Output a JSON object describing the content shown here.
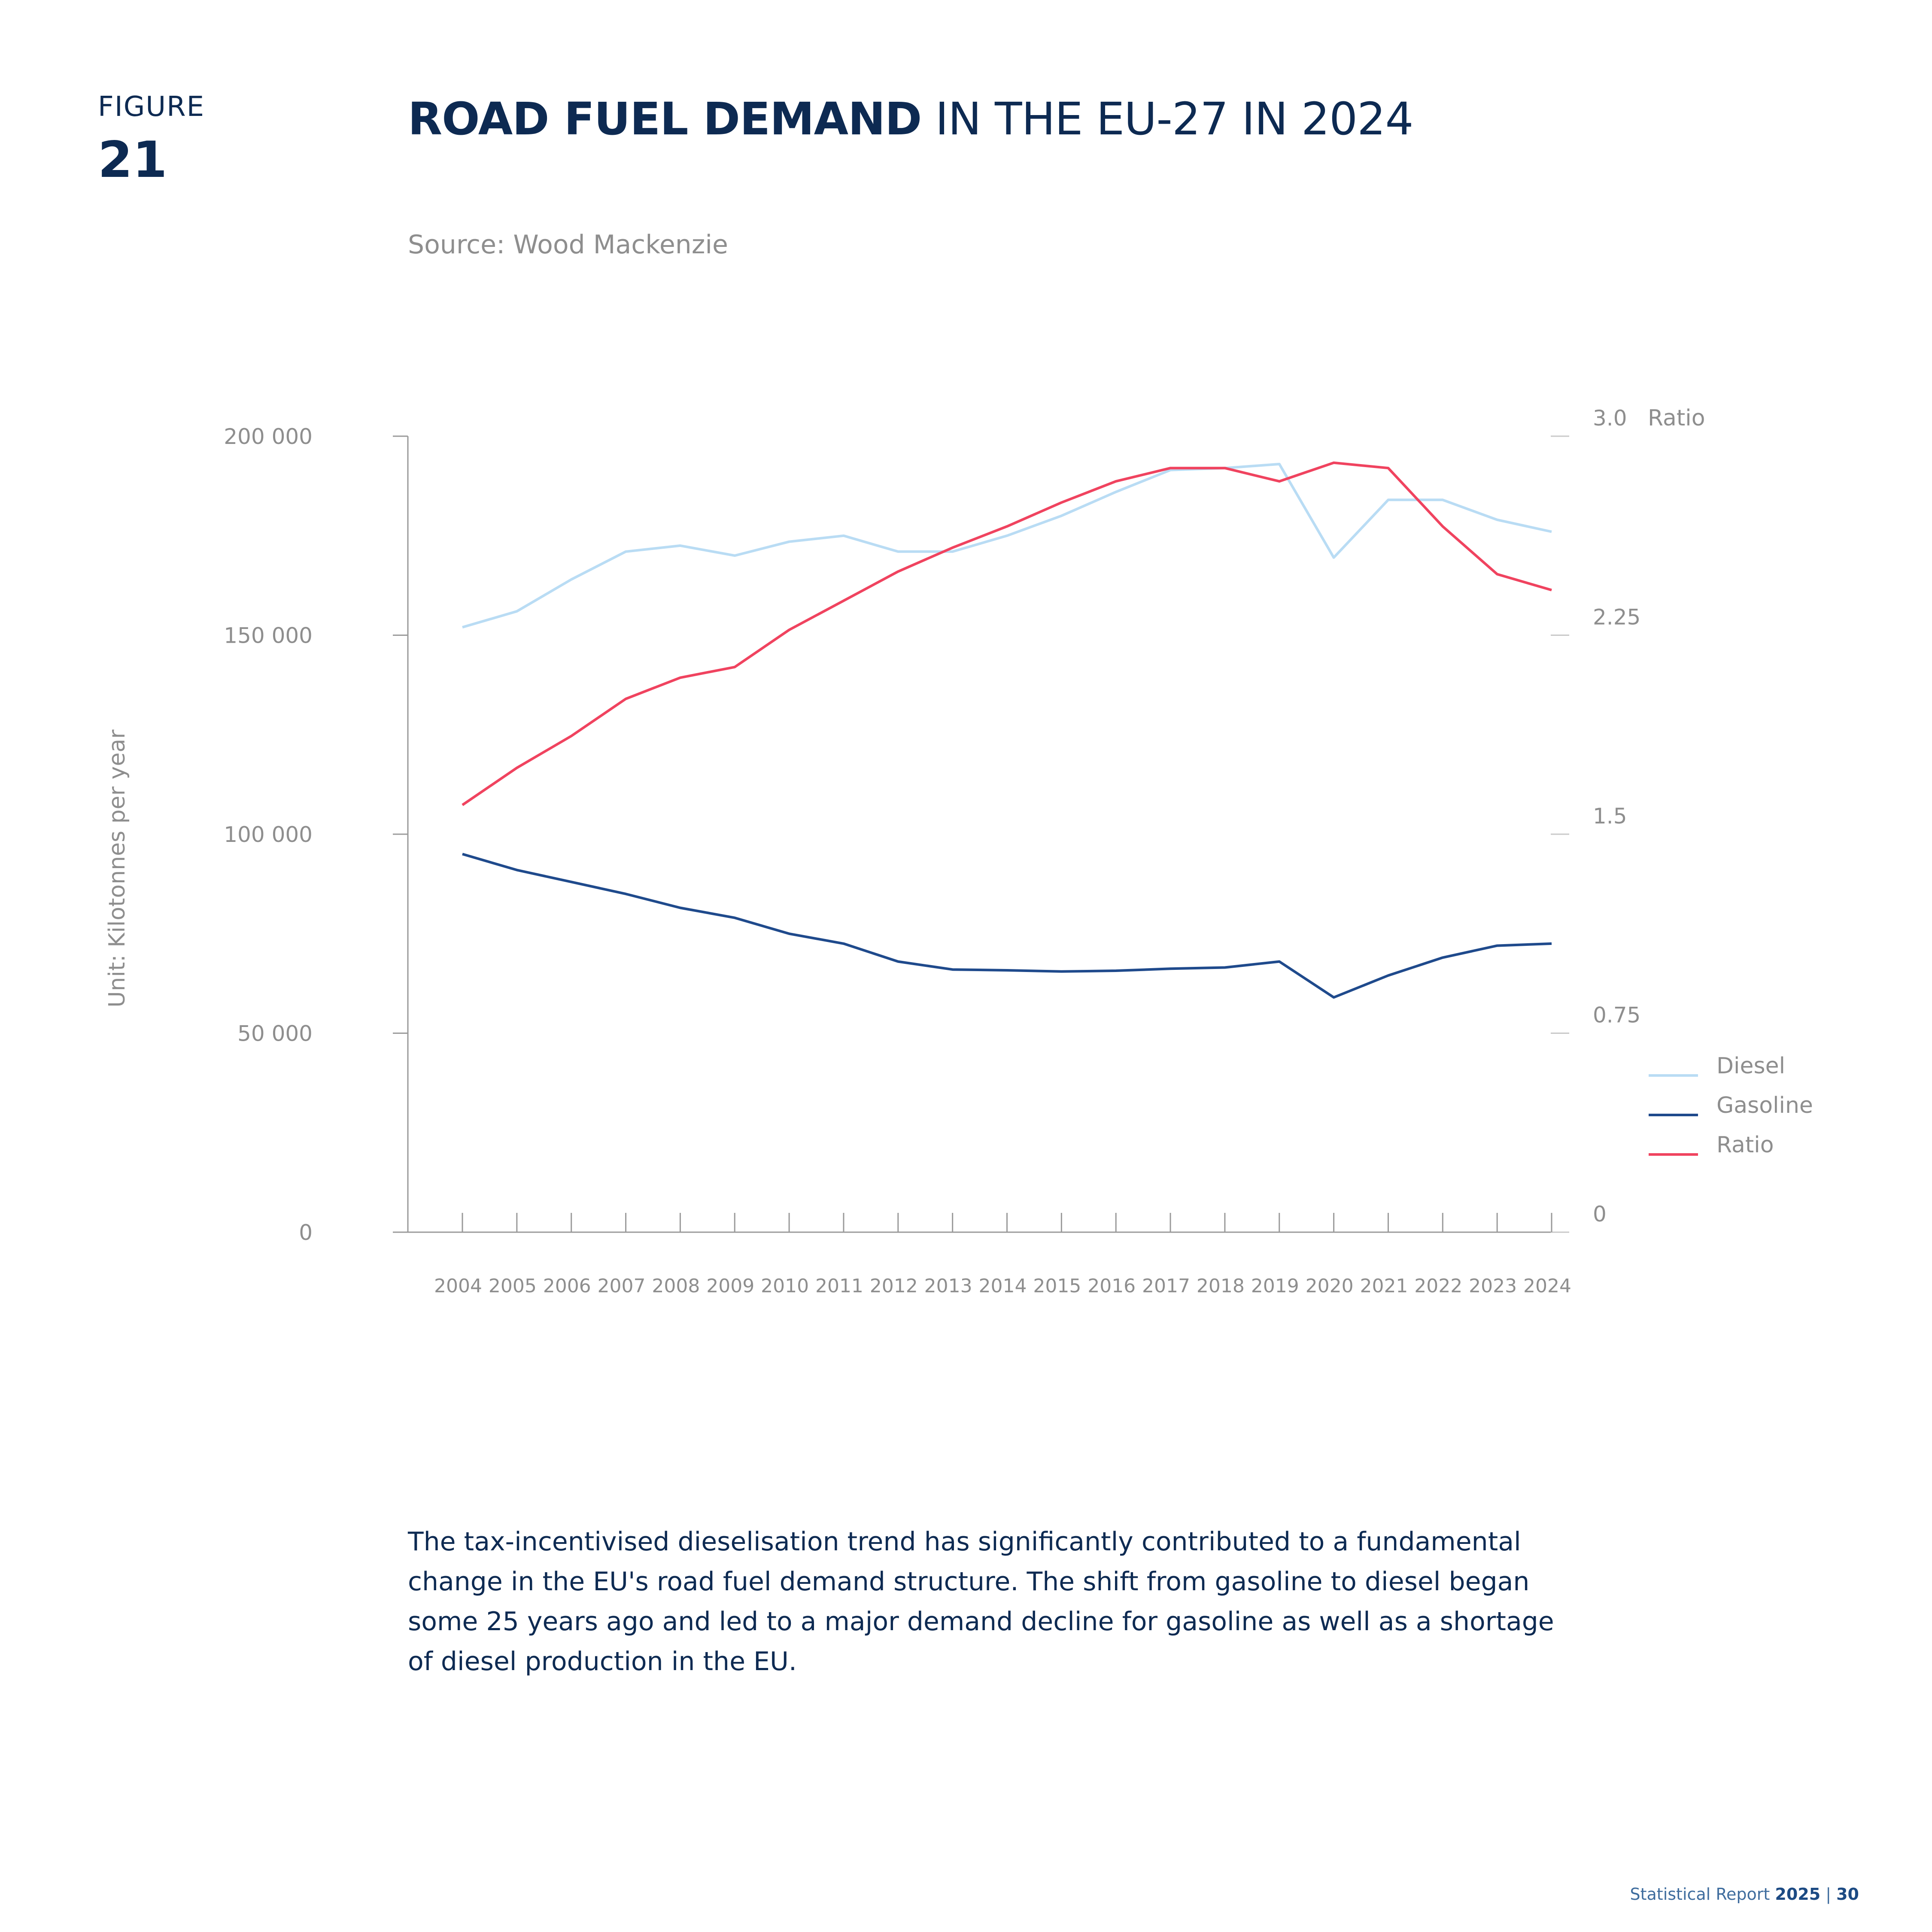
{
  "figure": {
    "label": "FIGURE",
    "number": "21"
  },
  "title": {
    "bold": "ROAD FUEL DEMAND",
    "regular": " IN THE EU-27 IN 2024"
  },
  "source": "Source: Wood Mackenzie",
  "body_text": "The tax-incentivised dieselisation trend has significantly contributed to a fundamental change in the EU's road fuel demand structure. The shift from gasoline to diesel began some 25 years ago and led to a major demand decline for gasoline as well as a shortage of diesel production in the EU.",
  "footer": {
    "text": "Statistical Report ",
    "year": "2025",
    "separator": " | ",
    "page": "30"
  },
  "colors": {
    "diesel": "#b9dcf4",
    "gasoline": "#1f4a8c",
    "ratio": "#f0435f",
    "text_dark": "#0d2a52",
    "axis": "#9a9a9a"
  },
  "chart_data": {
    "type": "line",
    "title": "ROAD FUEL DEMAND IN THE EU-27 IN 2024",
    "ylabel": "Unit: Kilotonnes per year",
    "y2label": "Ratio",
    "ylim": [
      0,
      200000
    ],
    "y2lim": [
      0,
      3.0
    ],
    "yticks": [
      "0",
      "50 000",
      "100 000",
      "150 000",
      "200 000"
    ],
    "y2ticks": [
      "0",
      "0.75",
      "1.5",
      "2.25",
      "3.0"
    ],
    "x": [
      "2004",
      "2005",
      "2006",
      "2007",
      "2008",
      "2009",
      "2010",
      "2011",
      "2012",
      "2013",
      "2014",
      "2015",
      "2016",
      "2017",
      "2018",
      "2019",
      "2020",
      "2021",
      "2022",
      "2023",
      "2024"
    ],
    "series": [
      {
        "name": "Diesel",
        "axis": "left",
        "values": [
          152000,
          156000,
          164000,
          171000,
          172500,
          170000,
          173500,
          175000,
          171000,
          171000,
          175000,
          180000,
          186000,
          191500,
          192000,
          193000,
          169500,
          184000,
          184000,
          179000,
          176000
        ]
      },
      {
        "name": "Gasoline",
        "axis": "left",
        "values": [
          95000,
          91000,
          88000,
          85000,
          81500,
          79000,
          75000,
          72500,
          68000,
          66000,
          65800,
          65500,
          65700,
          66200,
          66500,
          68000,
          59000,
          64500,
          69000,
          72000,
          72500
        ]
      },
      {
        "name": "Ratio",
        "axis": "right",
        "values": [
          1.61,
          1.75,
          1.87,
          2.01,
          2.09,
          2.13,
          2.27,
          2.38,
          2.49,
          2.58,
          2.66,
          2.75,
          2.83,
          2.88,
          2.88,
          2.83,
          2.9,
          2.88,
          2.66,
          2.48,
          2.42
        ]
      }
    ],
    "legend": {
      "placement": "right",
      "entries": [
        "Diesel",
        "Gasoline",
        "Ratio"
      ]
    },
    "grid": false
  }
}
